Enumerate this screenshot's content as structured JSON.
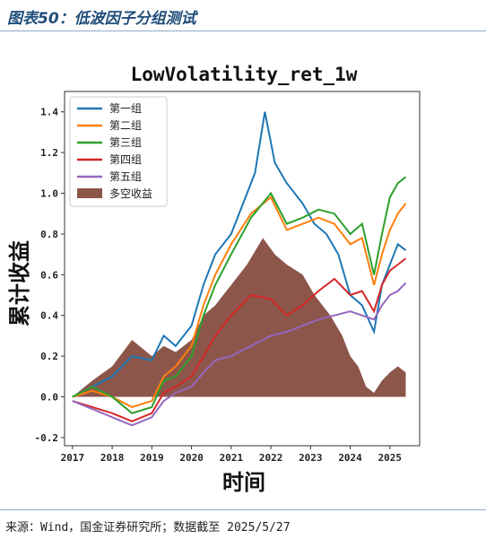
{
  "header": {
    "figure_title": "图表50：低波因子分组测试"
  },
  "footer": {
    "source": "来源：Wind，国金证券研究所；数据截至 2025/5/27"
  },
  "chart_data": {
    "type": "line",
    "title": "LowVolatility_ret_1w",
    "xlabel": "时间",
    "ylabel": "累计收益",
    "xlim": [
      2016.8,
      2025.75
    ],
    "ylim": [
      -0.24,
      1.5
    ],
    "x_ticks": [
      "2017",
      "2018",
      "2019",
      "2020",
      "2021",
      "2022",
      "2023",
      "2024",
      "2025"
    ],
    "y_ticks": [
      "-0.2",
      "0.0",
      "0.2",
      "0.4",
      "0.6",
      "0.8",
      "1.0",
      "1.2",
      "1.4"
    ],
    "legend_position": "upper-left",
    "series": [
      {
        "name": "第一组",
        "color": "#1f77b4",
        "points": [
          [
            2017.0,
            0.0
          ],
          [
            2017.5,
            0.05
          ],
          [
            2018.0,
            0.1
          ],
          [
            2018.5,
            0.2
          ],
          [
            2019.0,
            0.18
          ],
          [
            2019.3,
            0.3
          ],
          [
            2019.6,
            0.25
          ],
          [
            2020.0,
            0.35
          ],
          [
            2020.3,
            0.55
          ],
          [
            2020.6,
            0.7
          ],
          [
            2021.0,
            0.8
          ],
          [
            2021.3,
            0.95
          ],
          [
            2021.6,
            1.1
          ],
          [
            2021.85,
            1.4
          ],
          [
            2022.1,
            1.15
          ],
          [
            2022.4,
            1.05
          ],
          [
            2022.8,
            0.95
          ],
          [
            2023.1,
            0.85
          ],
          [
            2023.4,
            0.8
          ],
          [
            2023.7,
            0.7
          ],
          [
            2024.0,
            0.5
          ],
          [
            2024.3,
            0.45
          ],
          [
            2024.6,
            0.32
          ],
          [
            2024.8,
            0.55
          ],
          [
            2025.0,
            0.65
          ],
          [
            2025.2,
            0.75
          ],
          [
            2025.4,
            0.72
          ]
        ]
      },
      {
        "name": "第二组",
        "color": "#ff7f0e",
        "points": [
          [
            2017.0,
            0.0
          ],
          [
            2017.5,
            0.03
          ],
          [
            2018.0,
            0.0
          ],
          [
            2018.5,
            -0.05
          ],
          [
            2019.0,
            -0.02
          ],
          [
            2019.3,
            0.1
          ],
          [
            2019.6,
            0.15
          ],
          [
            2020.0,
            0.25
          ],
          [
            2020.3,
            0.45
          ],
          [
            2020.6,
            0.6
          ],
          [
            2021.0,
            0.75
          ],
          [
            2021.5,
            0.9
          ],
          [
            2022.0,
            0.98
          ],
          [
            2022.4,
            0.82
          ],
          [
            2022.8,
            0.85
          ],
          [
            2023.2,
            0.88
          ],
          [
            2023.6,
            0.85
          ],
          [
            2024.0,
            0.75
          ],
          [
            2024.3,
            0.78
          ],
          [
            2024.6,
            0.55
          ],
          [
            2024.8,
            0.7
          ],
          [
            2025.0,
            0.82
          ],
          [
            2025.2,
            0.9
          ],
          [
            2025.4,
            0.95
          ]
        ]
      },
      {
        "name": "第三组",
        "color": "#2ca02c",
        "points": [
          [
            2017.0,
            0.0
          ],
          [
            2017.5,
            0.05
          ],
          [
            2018.0,
            0.0
          ],
          [
            2018.5,
            -0.08
          ],
          [
            2019.0,
            -0.05
          ],
          [
            2019.3,
            0.08
          ],
          [
            2019.6,
            0.1
          ],
          [
            2020.0,
            0.2
          ],
          [
            2020.3,
            0.4
          ],
          [
            2020.6,
            0.55
          ],
          [
            2021.0,
            0.7
          ],
          [
            2021.5,
            0.88
          ],
          [
            2022.0,
            1.0
          ],
          [
            2022.4,
            0.85
          ],
          [
            2022.8,
            0.88
          ],
          [
            2023.2,
            0.92
          ],
          [
            2023.6,
            0.9
          ],
          [
            2024.0,
            0.8
          ],
          [
            2024.3,
            0.85
          ],
          [
            2024.6,
            0.6
          ],
          [
            2024.8,
            0.8
          ],
          [
            2025.0,
            0.98
          ],
          [
            2025.2,
            1.05
          ],
          [
            2025.4,
            1.08
          ]
        ]
      },
      {
        "name": "第四组",
        "color": "#d62728",
        "points": [
          [
            2017.0,
            -0.02
          ],
          [
            2017.5,
            -0.05
          ],
          [
            2018.0,
            -0.08
          ],
          [
            2018.5,
            -0.12
          ],
          [
            2019.0,
            -0.08
          ],
          [
            2019.3,
            0.02
          ],
          [
            2019.6,
            0.05
          ],
          [
            2020.0,
            0.1
          ],
          [
            2020.3,
            0.2
          ],
          [
            2020.6,
            0.3
          ],
          [
            2021.0,
            0.4
          ],
          [
            2021.5,
            0.5
          ],
          [
            2022.0,
            0.48
          ],
          [
            2022.4,
            0.4
          ],
          [
            2022.8,
            0.45
          ],
          [
            2023.2,
            0.52
          ],
          [
            2023.6,
            0.58
          ],
          [
            2024.0,
            0.5
          ],
          [
            2024.3,
            0.52
          ],
          [
            2024.6,
            0.42
          ],
          [
            2024.8,
            0.55
          ],
          [
            2025.0,
            0.62
          ],
          [
            2025.2,
            0.65
          ],
          [
            2025.4,
            0.68
          ]
        ]
      },
      {
        "name": "第五组",
        "color": "#9467bd",
        "points": [
          [
            2017.0,
            -0.02
          ],
          [
            2017.5,
            -0.06
          ],
          [
            2018.0,
            -0.1
          ],
          [
            2018.5,
            -0.14
          ],
          [
            2019.0,
            -0.1
          ],
          [
            2019.3,
            -0.02
          ],
          [
            2019.6,
            0.02
          ],
          [
            2020.0,
            0.05
          ],
          [
            2020.3,
            0.12
          ],
          [
            2020.6,
            0.18
          ],
          [
            2021.0,
            0.2
          ],
          [
            2021.5,
            0.25
          ],
          [
            2022.0,
            0.3
          ],
          [
            2022.4,
            0.32
          ],
          [
            2022.8,
            0.35
          ],
          [
            2023.2,
            0.38
          ],
          [
            2023.6,
            0.4
          ],
          [
            2024.0,
            0.42
          ],
          [
            2024.3,
            0.4
          ],
          [
            2024.6,
            0.38
          ],
          [
            2024.8,
            0.45
          ],
          [
            2025.0,
            0.5
          ],
          [
            2025.2,
            0.52
          ],
          [
            2025.4,
            0.56
          ]
        ]
      },
      {
        "name": "多空收益",
        "color": "#8c564b",
        "style": "area",
        "points": [
          [
            2017.0,
            0.0
          ],
          [
            2017.5,
            0.08
          ],
          [
            2018.0,
            0.15
          ],
          [
            2018.5,
            0.28
          ],
          [
            2019.0,
            0.2
          ],
          [
            2019.3,
            0.25
          ],
          [
            2019.6,
            0.22
          ],
          [
            2020.0,
            0.28
          ],
          [
            2020.3,
            0.4
          ],
          [
            2020.6,
            0.45
          ],
          [
            2021.0,
            0.55
          ],
          [
            2021.4,
            0.65
          ],
          [
            2021.8,
            0.78
          ],
          [
            2022.1,
            0.7
          ],
          [
            2022.4,
            0.65
          ],
          [
            2022.8,
            0.6
          ],
          [
            2023.1,
            0.5
          ],
          [
            2023.5,
            0.4
          ],
          [
            2023.8,
            0.3
          ],
          [
            2024.0,
            0.2
          ],
          [
            2024.2,
            0.15
          ],
          [
            2024.4,
            0.05
          ],
          [
            2024.6,
            0.02
          ],
          [
            2024.8,
            0.08
          ],
          [
            2025.0,
            0.12
          ],
          [
            2025.2,
            0.15
          ],
          [
            2025.4,
            0.12
          ]
        ]
      }
    ]
  }
}
